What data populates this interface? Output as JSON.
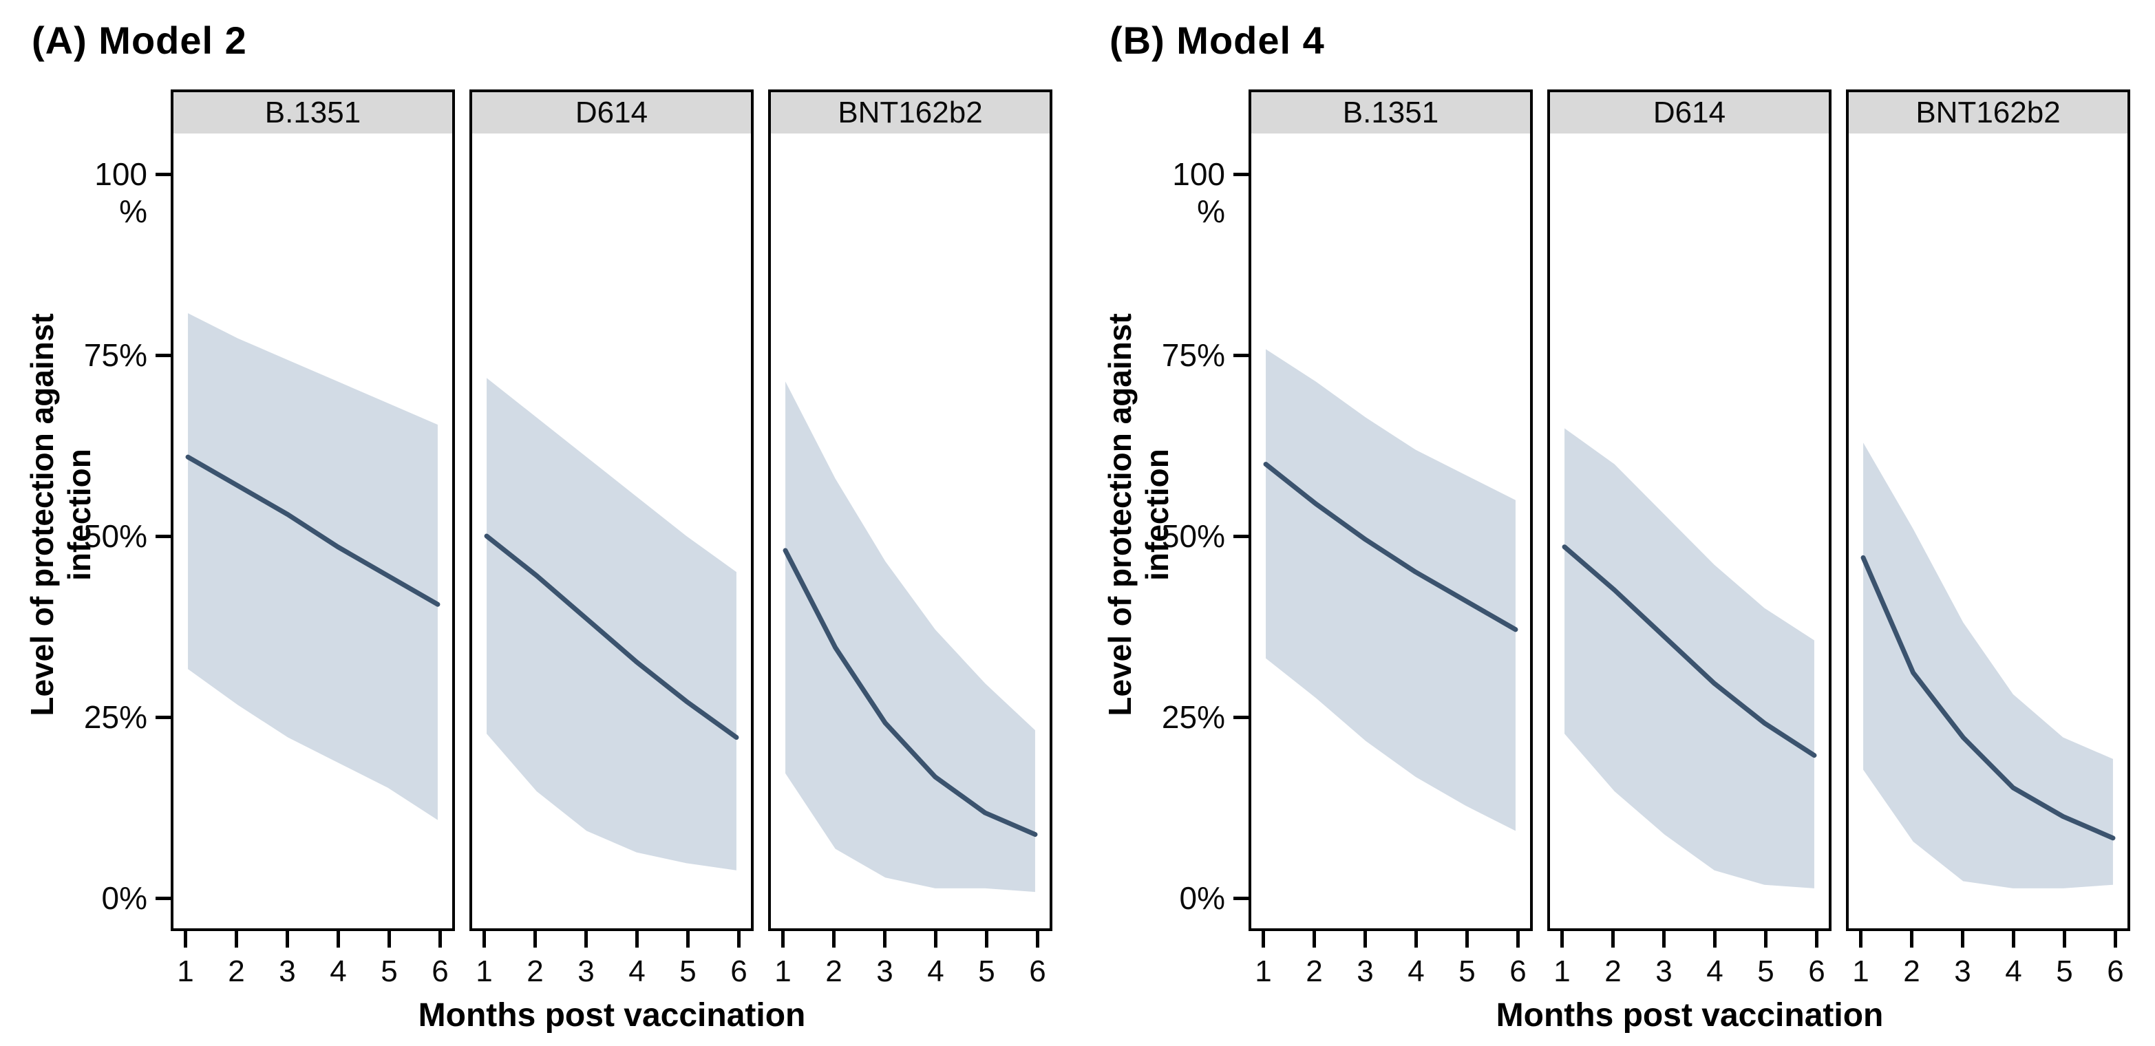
{
  "colors": {
    "ci_band": "#d2dbe5",
    "mean_line": "#3b536e",
    "strip_background": "#d9d9d9",
    "panel_border": "#000000",
    "background": "#ffffff"
  },
  "axis": {
    "x_label": "Months post vaccination",
    "y_label": "Level of protection against\ninfection"
  },
  "chart_data": [
    {
      "type": "line",
      "title": "(A) Model 2",
      "xlabel": "Months post vaccination",
      "ylabel": "Level of protection against infection",
      "x": [
        1,
        2,
        3,
        4,
        5,
        6
      ],
      "x_tick_labels": [
        "1",
        "2",
        "3",
        "4",
        "5",
        "6"
      ],
      "ylim": [
        -4.6,
        106
      ],
      "y_ticks": [
        {
          "value": 100,
          "label": "100\n%"
        },
        {
          "value": 75,
          "label": "75%"
        },
        {
          "value": 50,
          "label": "50%"
        },
        {
          "value": 25,
          "label": "25%"
        },
        {
          "value": 0,
          "label": "0%"
        }
      ],
      "series_note": "mean level of protection (%) with shaded credible band",
      "facets": [
        {
          "label": "B.1351",
          "mean": [
            61,
            57,
            53,
            48.5,
            44.5,
            40.5
          ],
          "ci_upper": [
            81,
            77.5,
            74.5,
            71.5,
            68.5,
            65.5
          ],
          "ci_lower": [
            31.5,
            26.5,
            22,
            18.5,
            15,
            10.5
          ]
        },
        {
          "label": "D614",
          "mean": [
            50,
            44.5,
            38.5,
            32.5,
            27,
            22
          ],
          "ci_upper": [
            72,
            66.5,
            61,
            55.5,
            50,
            45
          ],
          "ci_lower": [
            22.5,
            14.5,
            9,
            6,
            4.5,
            3.5
          ]
        },
        {
          "label": "BNT162b2",
          "mean": [
            48,
            34.5,
            24,
            16.5,
            11.5,
            8.5
          ],
          "ci_upper": [
            71.5,
            58,
            46.5,
            37,
            29.5,
            23
          ],
          "ci_lower": [
            17,
            6.5,
            2.5,
            1,
            1,
            0.5
          ]
        }
      ]
    },
    {
      "type": "line",
      "title": "(B) Model 4",
      "xlabel": "Months post vaccination",
      "ylabel": "Level of protection against infection",
      "x": [
        1,
        2,
        3,
        4,
        5,
        6
      ],
      "x_tick_labels": [
        "1",
        "2",
        "3",
        "4",
        "5",
        "6"
      ],
      "ylim": [
        -4.6,
        106
      ],
      "y_ticks": [
        {
          "value": 100,
          "label": "100\n%"
        },
        {
          "value": 75,
          "label": "75%"
        },
        {
          "value": 50,
          "label": "50%"
        },
        {
          "value": 25,
          "label": "25%"
        },
        {
          "value": 0,
          "label": "0%"
        }
      ],
      "series_note": "mean level of protection (%) with shaded credible band",
      "facets": [
        {
          "label": "B.1351",
          "mean": [
            60,
            54.5,
            49.5,
            45,
            41,
            37
          ],
          "ci_upper": [
            76,
            71.5,
            66.5,
            62,
            58.5,
            55
          ],
          "ci_lower": [
            33,
            27.5,
            21.5,
            16.5,
            12.5,
            9
          ]
        },
        {
          "label": "D614",
          "mean": [
            48.5,
            42.5,
            36,
            29.5,
            24,
            19.5
          ],
          "ci_upper": [
            65,
            60,
            53,
            46,
            40,
            35.5
          ],
          "ci_lower": [
            22.5,
            14.5,
            8.5,
            3.5,
            1.5,
            1
          ]
        },
        {
          "label": "BNT162b2",
          "mean": [
            47,
            31,
            22,
            15,
            11,
            8
          ],
          "ci_upper": [
            63,
            51,
            38,
            28,
            22,
            19
          ],
          "ci_lower": [
            17.5,
            7.5,
            2,
            1,
            1,
            1.5
          ]
        }
      ]
    }
  ]
}
